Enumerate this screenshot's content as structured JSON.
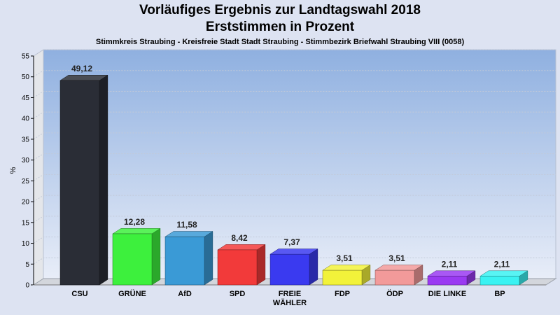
{
  "chart_data": {
    "type": "bar",
    "title": "Vorläufiges Ergebnis zur Landtagswahl 2018",
    "subtitle": "Erststimmen in Prozent",
    "subsubtitle": "Stimmkreis Straubing - Kreisfreie Stadt Stadt Straubing - Stimmbezirk Briefwahl Straubing VIII (0058)",
    "ylabel": "%",
    "xlabel": "",
    "ylim": [
      0,
      55
    ],
    "yticks": [
      0,
      5,
      10,
      15,
      20,
      25,
      30,
      35,
      40,
      45,
      50,
      55
    ],
    "grid": true,
    "categories": [
      [
        "CSU"
      ],
      [
        "GRÜNE"
      ],
      [
        "AfD"
      ],
      [
        "SPD"
      ],
      [
        "FREIE",
        "WÄHLER"
      ],
      [
        "FDP"
      ],
      [
        "ÖDP"
      ],
      [
        "DIE LINKE"
      ],
      [
        "BP"
      ]
    ],
    "values": [
      49.12,
      12.28,
      11.58,
      8.42,
      7.37,
      3.51,
      3.51,
      2.11,
      2.11
    ],
    "value_labels": [
      "49,12",
      "12,28",
      "11,58",
      "8,42",
      "7,37",
      "3,51",
      "3,51",
      "2,11",
      "2,11"
    ],
    "colors": [
      "#2a2d36",
      "#3df03d",
      "#3a9ad6",
      "#f23a3a",
      "#3a3af0",
      "#f2f23a",
      "#f29a9a",
      "#9a3af2",
      "#3af2f2"
    ]
  }
}
